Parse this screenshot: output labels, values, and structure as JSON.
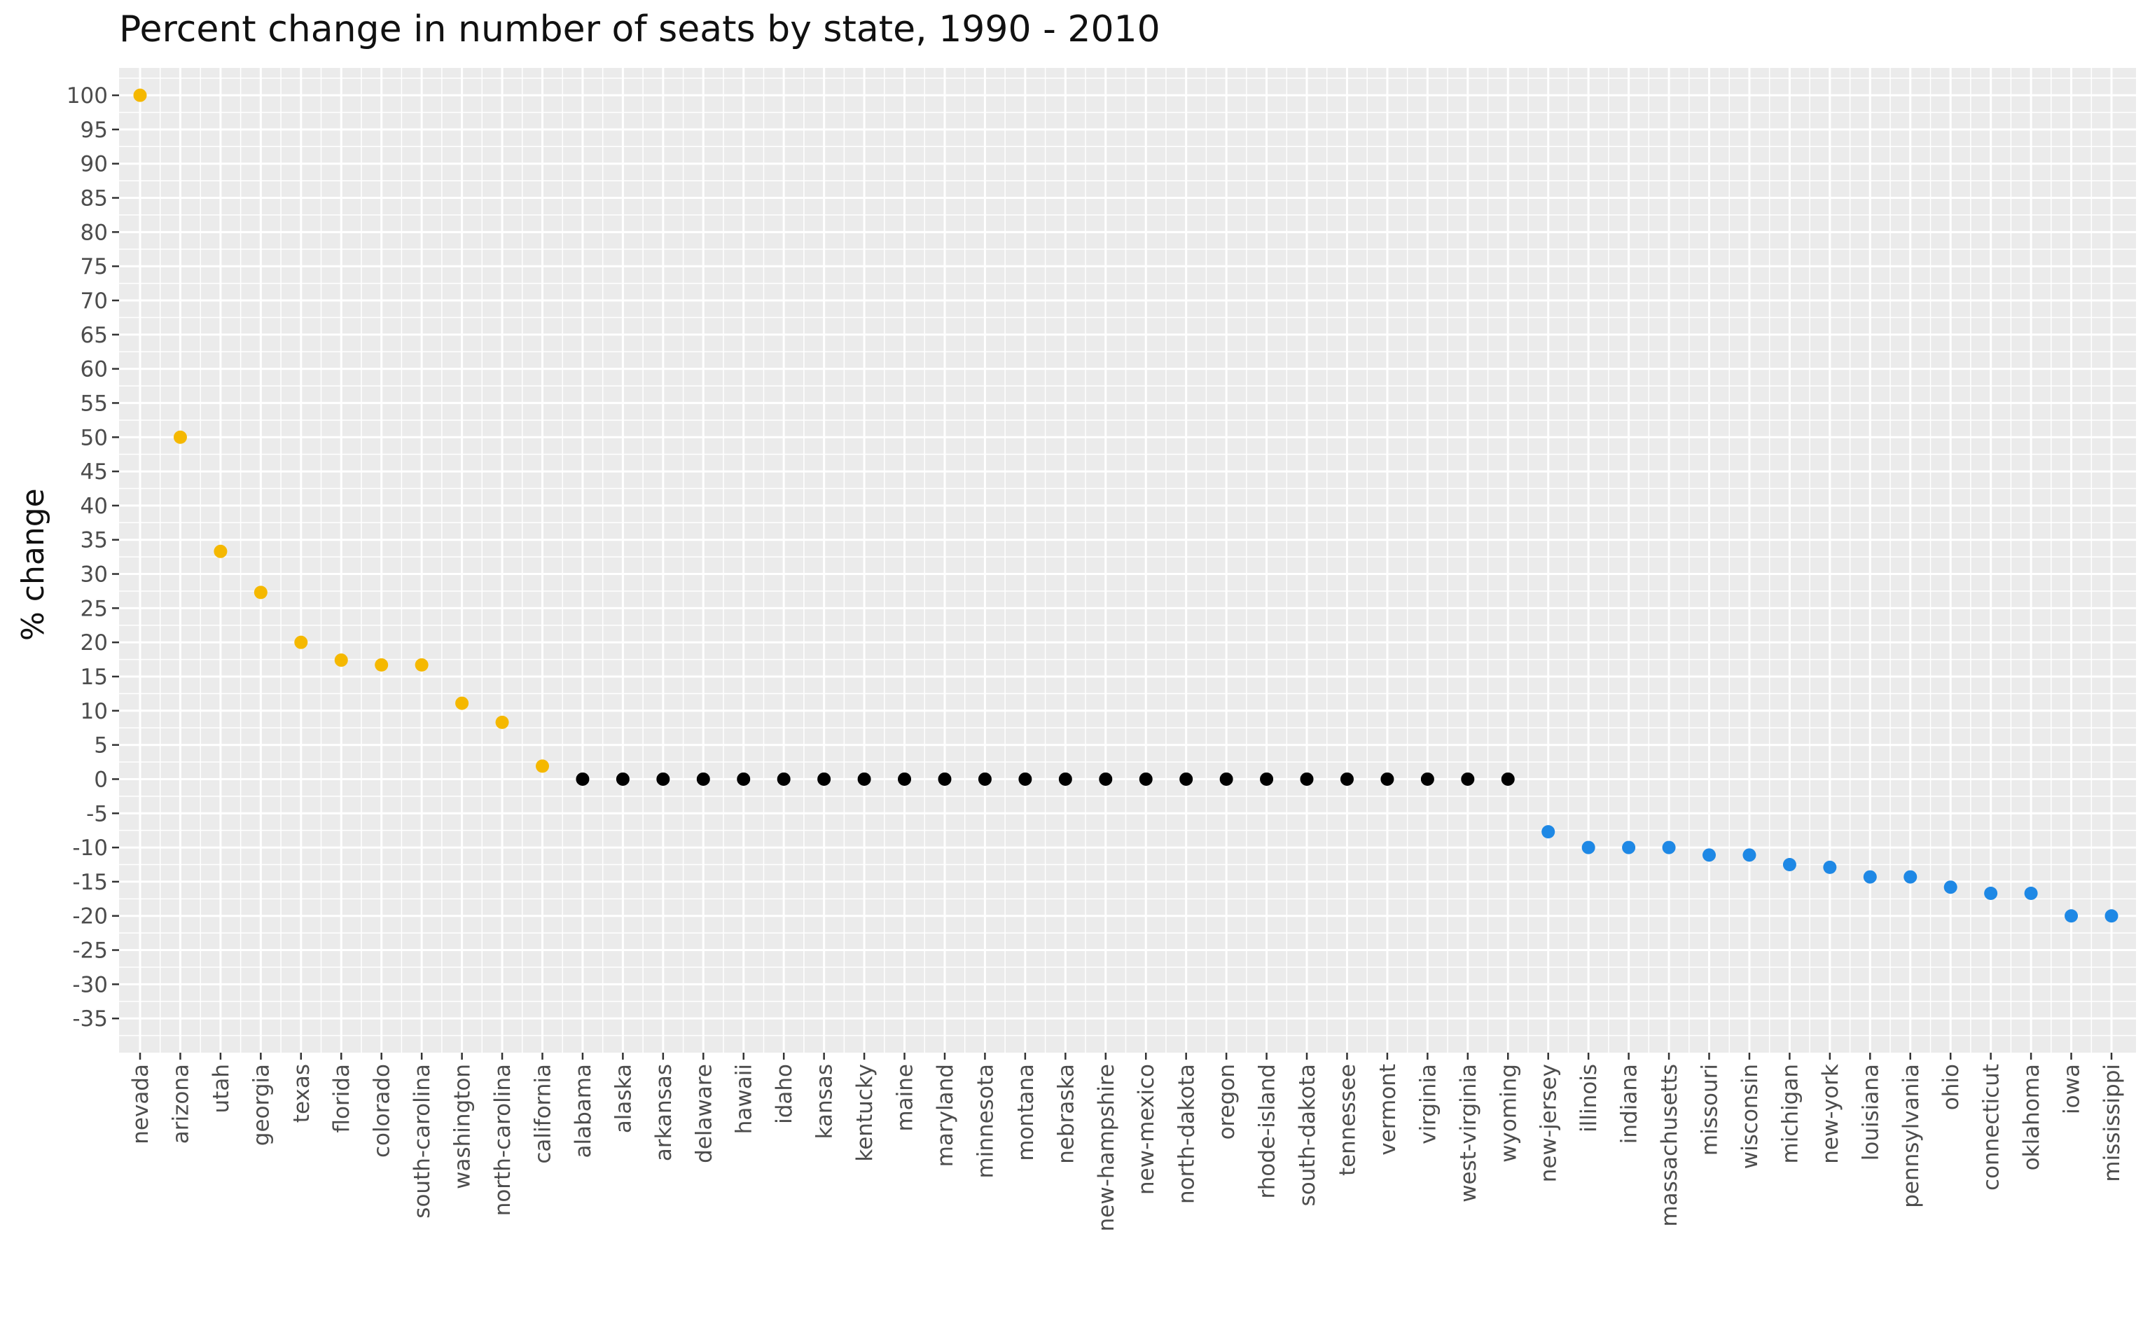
{
  "chart_data": {
    "type": "scatter",
    "title": "Percent change in number of seats by state, 1990 - 2010",
    "xlabel": "",
    "ylabel": "% change",
    "ylim": [
      -40,
      104
    ],
    "yticks": [
      100,
      95,
      90,
      85,
      80,
      75,
      70,
      65,
      60,
      55,
      50,
      45,
      40,
      35,
      30,
      25,
      20,
      15,
      10,
      5,
      0,
      -5,
      -10,
      -15,
      -20,
      -25,
      -30,
      -35
    ],
    "grid": true,
    "colors": {
      "gain": "#f5b800",
      "none": "#000000",
      "loss": "#1e88e5",
      "panel": "#ebebeb",
      "grid": "#ffffff"
    },
    "categories": [
      "nevada",
      "arizona",
      "utah",
      "georgia",
      "texas",
      "florida",
      "colorado",
      "south-carolina",
      "washington",
      "north-carolina",
      "california",
      "alabama",
      "alaska",
      "arkansas",
      "delaware",
      "hawaii",
      "idaho",
      "kansas",
      "kentucky",
      "maine",
      "maryland",
      "minnesota",
      "montana",
      "nebraska",
      "new-hampshire",
      "new-mexico",
      "north-dakota",
      "oregon",
      "rhode-island",
      "south-dakota",
      "tennessee",
      "vermont",
      "virginia",
      "west-virginia",
      "wyoming",
      "new-jersey",
      "illinois",
      "indiana",
      "massachusetts",
      "missouri",
      "wisconsin",
      "michigan",
      "new-york",
      "louisiana",
      "pennsylvania",
      "ohio",
      "connecticut",
      "oklahoma",
      "iowa",
      "mississippi"
    ],
    "values": [
      100,
      50,
      33.3,
      27.3,
      20,
      17.4,
      16.7,
      16.7,
      11.1,
      8.3,
      1.9,
      0,
      0,
      0,
      0,
      0,
      0,
      0,
      0,
      0,
      0,
      0,
      0,
      0,
      0,
      0,
      0,
      0,
      0,
      0,
      0,
      0,
      0,
      0,
      0,
      -7.7,
      -10,
      -10,
      -10,
      -11.1,
      -11.1,
      -12.5,
      -12.9,
      -14.3,
      -14.3,
      -15.8,
      -16.7,
      -16.7,
      -20,
      -20
    ]
  }
}
